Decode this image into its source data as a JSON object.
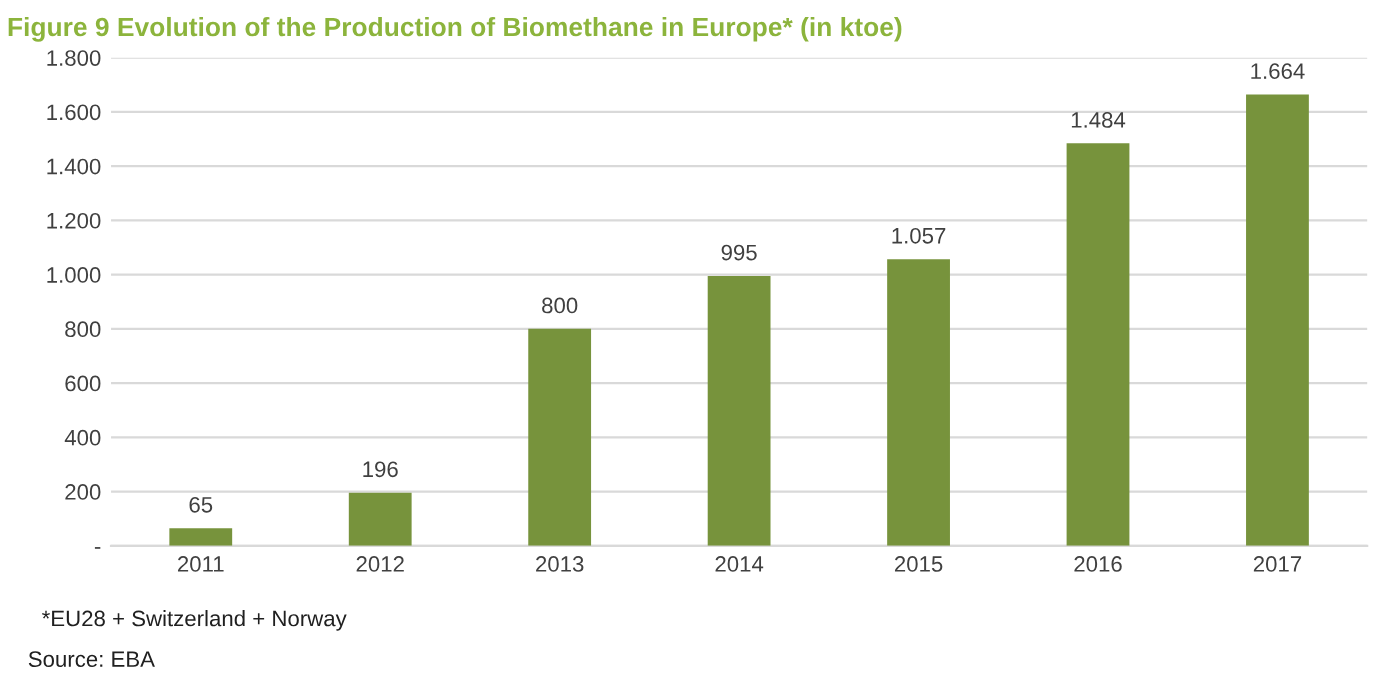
{
  "chart_data": {
    "type": "bar",
    "title": "Figure 9 Evolution of the Production of Biomethane in Europe* (in ktoe)",
    "categories": [
      "2011",
      "2012",
      "2013",
      "2014",
      "2015",
      "2016",
      "2017"
    ],
    "values": [
      65,
      196,
      800,
      995,
      1057,
      1484,
      1664
    ],
    "value_labels": [
      "65",
      "196",
      "800",
      "995",
      "1.057",
      "1.484",
      "1.664"
    ],
    "color": "#77933c",
    "ylim": [
      0,
      1800
    ],
    "yticks": [
      {
        "value": 0,
        "label": "-"
      },
      200,
      400,
      600,
      800,
      {
        "value": 1000,
        "label": "1.000"
      },
      {
        "value": 1200,
        "label": "1.200"
      },
      {
        "value": 1400,
        "label": "1.400"
      },
      {
        "value": 1600,
        "label": "1.600"
      },
      {
        "value": 1800,
        "label": "1.800"
      }
    ],
    "grid": "y",
    "annotations": [
      "*EU28 + Switzerland + Norway",
      "Source: EBA"
    ]
  }
}
